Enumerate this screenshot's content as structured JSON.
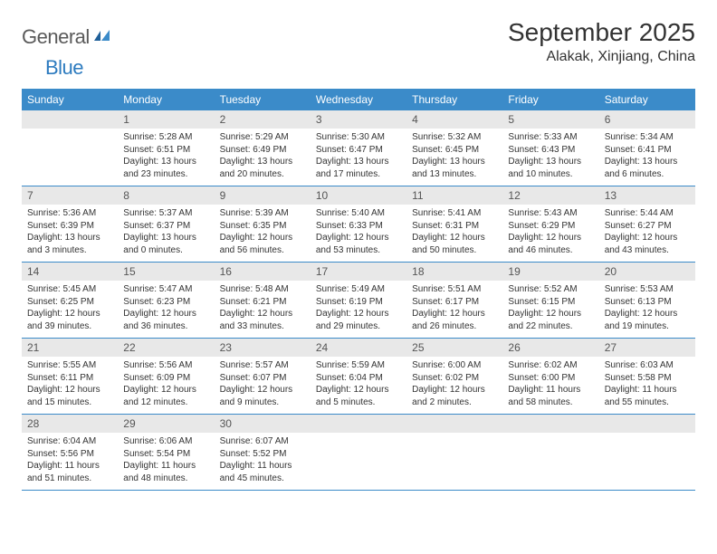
{
  "logo": {
    "text_general": "General",
    "text_blue": "Blue"
  },
  "title": "September 2025",
  "location": "Alakak, Xinjiang, China",
  "colors": {
    "header_bar": "#3b8bc9",
    "day_number_bg": "#e8e8e8",
    "week_border": "#3b8bc9",
    "logo_gray": "#5a5a5a",
    "logo_blue": "#2d7bbf"
  },
  "day_names": [
    "Sunday",
    "Monday",
    "Tuesday",
    "Wednesday",
    "Thursday",
    "Friday",
    "Saturday"
  ],
  "weeks": [
    [
      null,
      {
        "n": "1",
        "sr": "5:28 AM",
        "ss": "6:51 PM",
        "dl1": "Daylight: 13 hours",
        "dl2": "and 23 minutes."
      },
      {
        "n": "2",
        "sr": "5:29 AM",
        "ss": "6:49 PM",
        "dl1": "Daylight: 13 hours",
        "dl2": "and 20 minutes."
      },
      {
        "n": "3",
        "sr": "5:30 AM",
        "ss": "6:47 PM",
        "dl1": "Daylight: 13 hours",
        "dl2": "and 17 minutes."
      },
      {
        "n": "4",
        "sr": "5:32 AM",
        "ss": "6:45 PM",
        "dl1": "Daylight: 13 hours",
        "dl2": "and 13 minutes."
      },
      {
        "n": "5",
        "sr": "5:33 AM",
        "ss": "6:43 PM",
        "dl1": "Daylight: 13 hours",
        "dl2": "and 10 minutes."
      },
      {
        "n": "6",
        "sr": "5:34 AM",
        "ss": "6:41 PM",
        "dl1": "Daylight: 13 hours",
        "dl2": "and 6 minutes."
      }
    ],
    [
      {
        "n": "7",
        "sr": "5:36 AM",
        "ss": "6:39 PM",
        "dl1": "Daylight: 13 hours",
        "dl2": "and 3 minutes."
      },
      {
        "n": "8",
        "sr": "5:37 AM",
        "ss": "6:37 PM",
        "dl1": "Daylight: 13 hours",
        "dl2": "and 0 minutes."
      },
      {
        "n": "9",
        "sr": "5:39 AM",
        "ss": "6:35 PM",
        "dl1": "Daylight: 12 hours",
        "dl2": "and 56 minutes."
      },
      {
        "n": "10",
        "sr": "5:40 AM",
        "ss": "6:33 PM",
        "dl1": "Daylight: 12 hours",
        "dl2": "and 53 minutes."
      },
      {
        "n": "11",
        "sr": "5:41 AM",
        "ss": "6:31 PM",
        "dl1": "Daylight: 12 hours",
        "dl2": "and 50 minutes."
      },
      {
        "n": "12",
        "sr": "5:43 AM",
        "ss": "6:29 PM",
        "dl1": "Daylight: 12 hours",
        "dl2": "and 46 minutes."
      },
      {
        "n": "13",
        "sr": "5:44 AM",
        "ss": "6:27 PM",
        "dl1": "Daylight: 12 hours",
        "dl2": "and 43 minutes."
      }
    ],
    [
      {
        "n": "14",
        "sr": "5:45 AM",
        "ss": "6:25 PM",
        "dl1": "Daylight: 12 hours",
        "dl2": "and 39 minutes."
      },
      {
        "n": "15",
        "sr": "5:47 AM",
        "ss": "6:23 PM",
        "dl1": "Daylight: 12 hours",
        "dl2": "and 36 minutes."
      },
      {
        "n": "16",
        "sr": "5:48 AM",
        "ss": "6:21 PM",
        "dl1": "Daylight: 12 hours",
        "dl2": "and 33 minutes."
      },
      {
        "n": "17",
        "sr": "5:49 AM",
        "ss": "6:19 PM",
        "dl1": "Daylight: 12 hours",
        "dl2": "and 29 minutes."
      },
      {
        "n": "18",
        "sr": "5:51 AM",
        "ss": "6:17 PM",
        "dl1": "Daylight: 12 hours",
        "dl2": "and 26 minutes."
      },
      {
        "n": "19",
        "sr": "5:52 AM",
        "ss": "6:15 PM",
        "dl1": "Daylight: 12 hours",
        "dl2": "and 22 minutes."
      },
      {
        "n": "20",
        "sr": "5:53 AM",
        "ss": "6:13 PM",
        "dl1": "Daylight: 12 hours",
        "dl2": "and 19 minutes."
      }
    ],
    [
      {
        "n": "21",
        "sr": "5:55 AM",
        "ss": "6:11 PM",
        "dl1": "Daylight: 12 hours",
        "dl2": "and 15 minutes."
      },
      {
        "n": "22",
        "sr": "5:56 AM",
        "ss": "6:09 PM",
        "dl1": "Daylight: 12 hours",
        "dl2": "and 12 minutes."
      },
      {
        "n": "23",
        "sr": "5:57 AM",
        "ss": "6:07 PM",
        "dl1": "Daylight: 12 hours",
        "dl2": "and 9 minutes."
      },
      {
        "n": "24",
        "sr": "5:59 AM",
        "ss": "6:04 PM",
        "dl1": "Daylight: 12 hours",
        "dl2": "and 5 minutes."
      },
      {
        "n": "25",
        "sr": "6:00 AM",
        "ss": "6:02 PM",
        "dl1": "Daylight: 12 hours",
        "dl2": "and 2 minutes."
      },
      {
        "n": "26",
        "sr": "6:02 AM",
        "ss": "6:00 PM",
        "dl1": "Daylight: 11 hours",
        "dl2": "and 58 minutes."
      },
      {
        "n": "27",
        "sr": "6:03 AM",
        "ss": "5:58 PM",
        "dl1": "Daylight: 11 hours",
        "dl2": "and 55 minutes."
      }
    ],
    [
      {
        "n": "28",
        "sr": "6:04 AM",
        "ss": "5:56 PM",
        "dl1": "Daylight: 11 hours",
        "dl2": "and 51 minutes."
      },
      {
        "n": "29",
        "sr": "6:06 AM",
        "ss": "5:54 PM",
        "dl1": "Daylight: 11 hours",
        "dl2": "and 48 minutes."
      },
      {
        "n": "30",
        "sr": "6:07 AM",
        "ss": "5:52 PM",
        "dl1": "Daylight: 11 hours",
        "dl2": "and 45 minutes."
      },
      null,
      null,
      null,
      null
    ]
  ],
  "labels": {
    "sunrise": "Sunrise:",
    "sunset": "Sunset:"
  }
}
